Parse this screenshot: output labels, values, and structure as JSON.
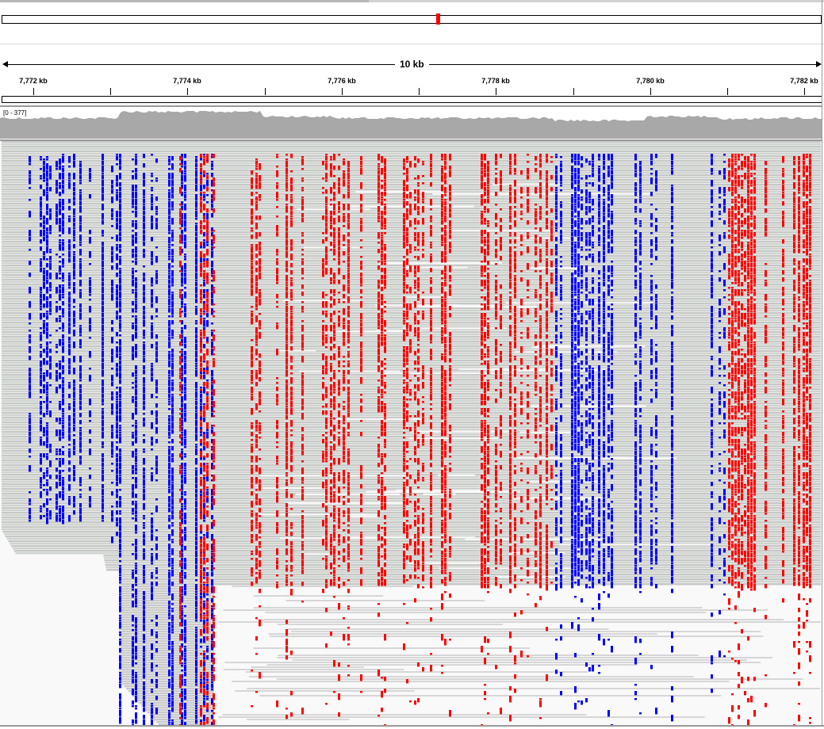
{
  "ideogram": {
    "marker_color": "#ff0000"
  },
  "ruler": {
    "span_label": "10 kb",
    "ticks": [
      {
        "label": "7,772 kb",
        "x": 42
      },
      {
        "label": "7,774 kb",
        "x": 236
      },
      {
        "label": "7,776 kb",
        "x": 431
      },
      {
        "label": "7,778 kb",
        "x": 625
      },
      {
        "label": "7,780 kb",
        "x": 820
      },
      {
        "label": "7,782 kb",
        "x": 1014
      }
    ]
  },
  "coverage": {
    "range_label": "[0 - 377]",
    "color": "#a8a8a8"
  },
  "alignments": {
    "read_color": "#c8c8c8",
    "mismatch_colors": {
      "A": "#00c800",
      "C": "#0000ff",
      "G": "#d17105",
      "T": "#ff0000"
    }
  }
}
